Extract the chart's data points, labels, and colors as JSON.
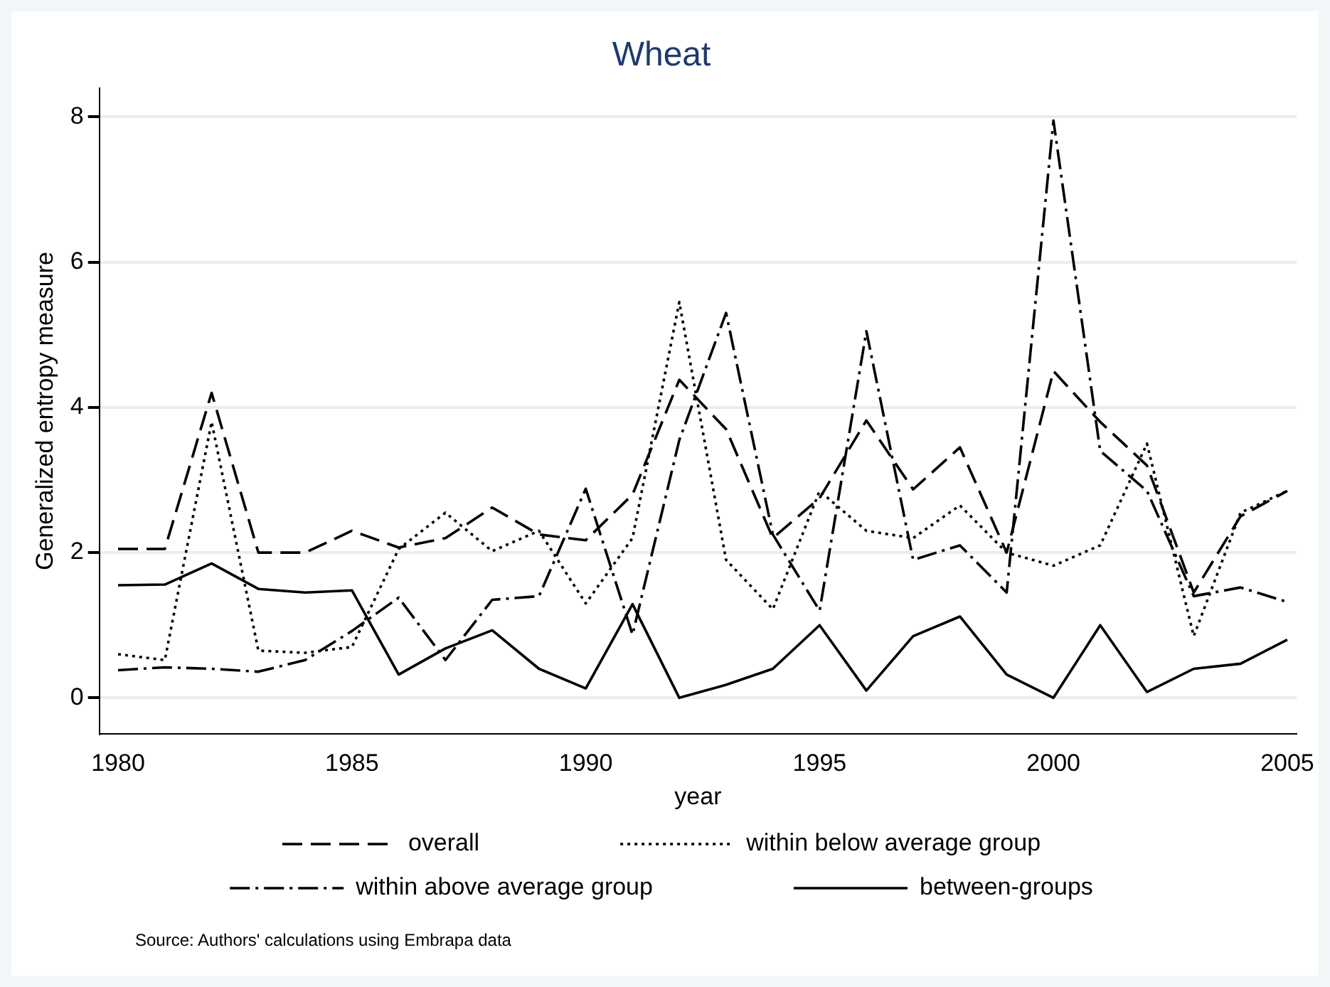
{
  "chart_data": {
    "type": "line",
    "title": "Wheat",
    "xlabel": "year",
    "ylabel": "Generalized entropy measure",
    "x": [
      1980,
      1981,
      1982,
      1983,
      1984,
      1985,
      1986,
      1987,
      1988,
      1989,
      1990,
      1991,
      1992,
      1993,
      1994,
      1995,
      1996,
      1997,
      1998,
      1999,
      2000,
      2001,
      2002,
      2003,
      2004,
      2005
    ],
    "xlim": [
      1979.6,
      2005.2
    ],
    "xticks": [
      1980,
      1985,
      1990,
      1995,
      2000,
      2005
    ],
    "ylim": [
      -0.5,
      8.4
    ],
    "yticks": [
      0,
      2,
      4,
      6,
      8
    ],
    "grid": "y",
    "legend": "bottom",
    "marker": "none",
    "series": [
      {
        "name": "overall",
        "color": "#000000",
        "line_style": "dashed",
        "values": [
          2.05,
          2.05,
          4.2,
          2.0,
          2.0,
          2.3,
          2.07,
          2.2,
          2.62,
          2.25,
          2.17,
          2.8,
          4.38,
          3.7,
          2.2,
          2.75,
          3.82,
          2.87,
          3.45,
          2.0,
          4.5,
          3.8,
          3.2,
          1.45,
          2.5,
          2.85
        ]
      },
      {
        "name": "within below average group",
        "color": "#000000",
        "line_style": "dotted",
        "values": [
          0.6,
          0.52,
          3.8,
          0.65,
          0.62,
          0.7,
          2.05,
          2.55,
          2.02,
          2.3,
          1.3,
          2.2,
          5.45,
          1.9,
          1.22,
          2.85,
          2.3,
          2.2,
          2.65,
          2.0,
          1.82,
          2.1,
          3.5,
          0.85,
          2.55,
          2.85
        ]
      },
      {
        "name": "within above average group",
        "color": "#000000",
        "line_style": "dashdot",
        "values": [
          0.38,
          0.42,
          0.4,
          0.36,
          0.52,
          0.92,
          1.38,
          0.52,
          1.35,
          1.4,
          2.88,
          0.87,
          3.55,
          5.3,
          2.25,
          1.2,
          5.05,
          1.9,
          2.1,
          1.45,
          7.95,
          3.4,
          2.85,
          1.4,
          1.52,
          1.32
        ]
      },
      {
        "name": "between-groups",
        "color": "#000000",
        "line_style": "solid",
        "values": [
          1.55,
          1.56,
          1.85,
          1.5,
          1.45,
          1.48,
          0.32,
          0.68,
          0.93,
          0.4,
          0.13,
          1.29,
          0.0,
          0.18,
          0.4,
          1.0,
          0.1,
          0.85,
          1.12,
          0.32,
          0.0,
          1.0,
          0.08,
          0.4,
          0.47,
          0.8
        ]
      }
    ],
    "annotations": [
      "Source: Authors' calculations using Embrapa data"
    ]
  }
}
